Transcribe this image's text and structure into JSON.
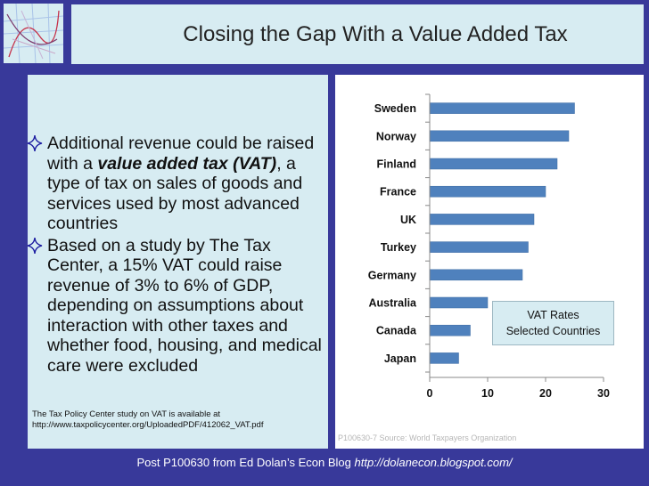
{
  "title": "Closing the Gap With a Value Added Tax",
  "bullets": [
    {
      "pre": "Additional revenue could be raised with a ",
      "em": "value added tax (VAT)",
      "post": ", a type of tax on sales of goods and services used by most advanced countries"
    },
    {
      "text": "Based on a study by The Tax Center, a 15% VAT could raise revenue of 3% to 6% of GDP, depending on assumptions about interaction with other taxes and whether food, housing, and medical care were excluded"
    }
  ],
  "footnote": {
    "line1": "The Tax Policy Center study on VAT is available at",
    "line2": "http://www.taxpolicycenter.org/UploadedPDF/412062_VAT.pdf"
  },
  "chart_source": "P100630-7 Source: World Taxpayers Organization",
  "footer": {
    "text": "Post P100630 from Ed Dolan’s Econ Blog ",
    "url": "http://dolanecon.blogspot.com/"
  },
  "colors": {
    "background": "#38399a",
    "panel": "#d7ecf2",
    "bar": "#4f81bd"
  },
  "chart_data": {
    "type": "bar",
    "orientation": "horizontal",
    "categories": [
      "Sweden",
      "Norway",
      "Finland",
      "France",
      "UK",
      "Turkey",
      "Germany",
      "Australia",
      "Canada",
      "Japan"
    ],
    "values": [
      25,
      24,
      22,
      20,
      18,
      17,
      16,
      10,
      7,
      5
    ],
    "xlim": [
      0,
      30
    ],
    "xticks": [
      0,
      10,
      20,
      30
    ],
    "legend_lines": [
      "VAT Rates",
      "Selected Countries"
    ],
    "grid": false
  }
}
